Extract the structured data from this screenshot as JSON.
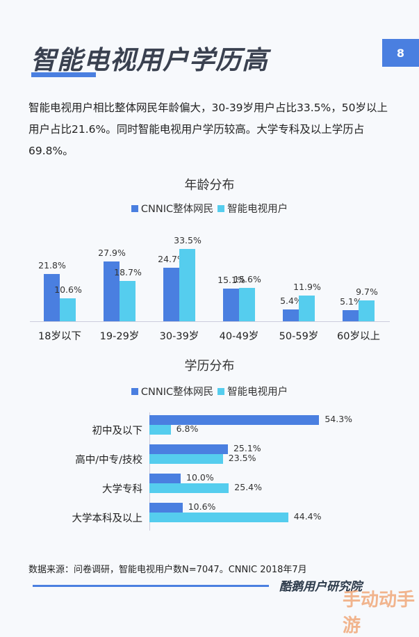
{
  "header": {
    "title": "智能电视用户学历高",
    "page_number": "8"
  },
  "summary": "智能电视用户相比整体网民年龄偏大，30-39岁用户占比33.5%，50岁以上用户占比21.6%。同时智能电视用户学历较高。大学专科及以上学历占69.8%。",
  "colors": {
    "accent": "#4a7fe0",
    "cnnic": "#4a7fe0",
    "tv": "#55cdee"
  },
  "legend": {
    "cnnic": "CNNIC整体网民",
    "tv": "智能电视用户"
  },
  "chart_data": [
    {
      "type": "bar",
      "title": "年龄分布",
      "categories": [
        "18岁以下",
        "19-29岁",
        "30-39岁",
        "40-49岁",
        "50-59岁",
        "60岁以上"
      ],
      "series": [
        {
          "name": "CNNIC整体网民",
          "values": [
            21.8,
            27.9,
            24.7,
            15.1,
            5.4,
            5.1
          ]
        },
        {
          "name": "智能电视用户",
          "values": [
            10.6,
            18.7,
            33.5,
            15.6,
            11.9,
            9.7
          ]
        }
      ],
      "labels": {
        "cnnic": [
          "21.8%",
          "27.9%",
          "24.7%",
          "15.1%",
          "5.4%",
          "5.1%"
        ],
        "tv": [
          "10.6%",
          "18.7%",
          "33.5%",
          "15.6%",
          "11.9%",
          "9.7%"
        ]
      },
      "legend_position": "top",
      "grid": false,
      "unit": "%"
    },
    {
      "type": "bar",
      "orientation": "horizontal",
      "title": "学历分布",
      "categories": [
        "初中及以下",
        "高中/中专/技校",
        "大学专科",
        "大学本科及以上"
      ],
      "series": [
        {
          "name": "CNNIC整体网民",
          "values": [
            54.3,
            25.1,
            10.0,
            10.6
          ]
        },
        {
          "name": "智能电视用户",
          "values": [
            6.8,
            23.5,
            25.4,
            44.4
          ]
        }
      ],
      "labels": {
        "cnnic": [
          "54.3%",
          "25.1%",
          "10.0%",
          "10.6%"
        ],
        "tv": [
          "6.8%",
          "23.5%",
          "25.4%",
          "44.4%"
        ]
      },
      "legend_position": "top",
      "grid": false,
      "unit": "%"
    }
  ],
  "footer": {
    "source": "数据来源：问卷调研，智能电视用户数N=7047。CNNIC 2018年7月",
    "brand": "酷鹅用户研究院",
    "watermark": "手动动手游"
  }
}
